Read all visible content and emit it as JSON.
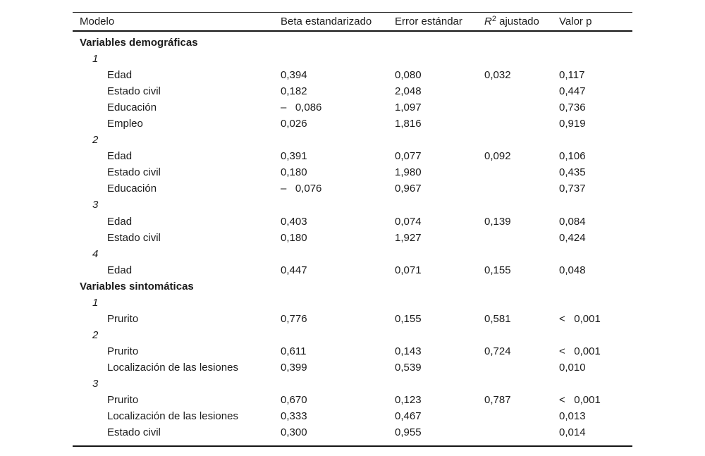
{
  "table": {
    "header": {
      "modelo": "Modelo",
      "beta": "Beta estandarizado",
      "error": "Error estándar",
      "r2_symbol": "R",
      "r2_sup": "2",
      "r2_rest": " ajustado",
      "valor_p": "Valor p"
    },
    "rows": [
      {
        "type": "section",
        "label": "Variables demográficas"
      },
      {
        "type": "model",
        "label": "1"
      },
      {
        "type": "variable",
        "label": "Edad",
        "beta": "0,394",
        "error": "0,080",
        "r2": "0,032",
        "p": "0,117"
      },
      {
        "type": "variable",
        "label": "Estado civil",
        "beta": "0,182",
        "error": "2,048",
        "r2": "",
        "p": "0,447"
      },
      {
        "type": "variable",
        "label": "Educación",
        "beta": "–   0,086",
        "error": "1,097",
        "r2": "",
        "p": "0,736"
      },
      {
        "type": "variable",
        "label": "Empleo",
        "beta": "0,026",
        "error": "1,816",
        "r2": "",
        "p": "0,919"
      },
      {
        "type": "model",
        "label": "2"
      },
      {
        "type": "variable",
        "label": "Edad",
        "beta": "0,391",
        "error": "0,077",
        "r2": "0,092",
        "p": "0,106"
      },
      {
        "type": "variable",
        "label": "Estado civil",
        "beta": "0,180",
        "error": "1,980",
        "r2": "",
        "p": "0,435"
      },
      {
        "type": "variable",
        "label": "Educación",
        "beta": "–   0,076",
        "error": "0,967",
        "r2": "",
        "p": "0,737"
      },
      {
        "type": "model",
        "label": "3"
      },
      {
        "type": "variable",
        "label": "Edad",
        "beta": "0,403",
        "error": "0,074",
        "r2": "0,139",
        "p": "0,084"
      },
      {
        "type": "variable",
        "label": "Estado civil",
        "beta": "0,180",
        "error": "1,927",
        "r2": "",
        "p": "0,424"
      },
      {
        "type": "model",
        "label": "4"
      },
      {
        "type": "variable",
        "label": "Edad",
        "beta": "0,447",
        "error": "0,071",
        "r2": "0,155",
        "p": "0,048"
      },
      {
        "type": "section",
        "label": "Variables sintomáticas"
      },
      {
        "type": "model",
        "label": "1"
      },
      {
        "type": "variable",
        "label": "Prurito",
        "beta": "0,776",
        "error": "0,155",
        "r2": "0,581",
        "p": "<   0,001"
      },
      {
        "type": "model",
        "label": "2"
      },
      {
        "type": "variable",
        "label": "Prurito",
        "beta": "0,611",
        "error": "0,143",
        "r2": "0,724",
        "p": "<   0,001"
      },
      {
        "type": "variable",
        "label": "Localización de las lesiones",
        "beta": "0,399",
        "error": "0,539",
        "r2": "",
        "p": "0,010"
      },
      {
        "type": "model",
        "label": "3"
      },
      {
        "type": "variable",
        "label": "Prurito",
        "beta": "0,670",
        "error": "0,123",
        "r2": "0,787",
        "p": "<   0,001"
      },
      {
        "type": "variable",
        "label": "Localización de las lesiones",
        "beta": "0,333",
        "error": "0,467",
        "r2": "",
        "p": "0,013"
      },
      {
        "type": "variable",
        "label": "Estado civil",
        "beta": "0,300",
        "error": "0,955",
        "r2": "",
        "p": "0,014"
      }
    ]
  }
}
